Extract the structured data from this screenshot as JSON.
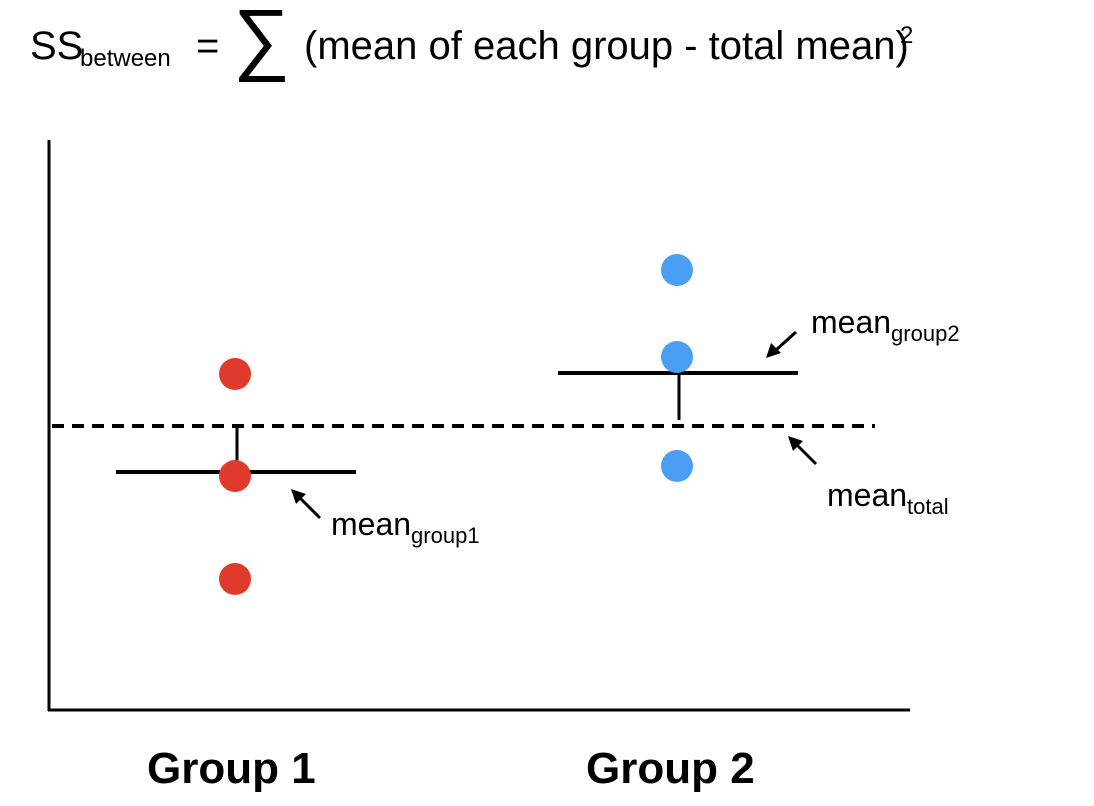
{
  "formula": {
    "lhs": "SS",
    "lhs_sub": "between",
    "equals": "=",
    "sigma": "∑",
    "body": "(mean of each group - total mean)",
    "exponent": "2"
  },
  "labels": {
    "group1_mean": {
      "main": "mean",
      "sub": "group1"
    },
    "group2_mean": {
      "main": "mean",
      "sub": "group2"
    },
    "total_mean": {
      "main": "mean",
      "sub": "total"
    }
  },
  "groups": {
    "group1": "Group 1",
    "group2": "Group 2"
  },
  "colors": {
    "group1": "#e03a2c",
    "group2": "#4a9ff5",
    "line": "#000000"
  }
}
